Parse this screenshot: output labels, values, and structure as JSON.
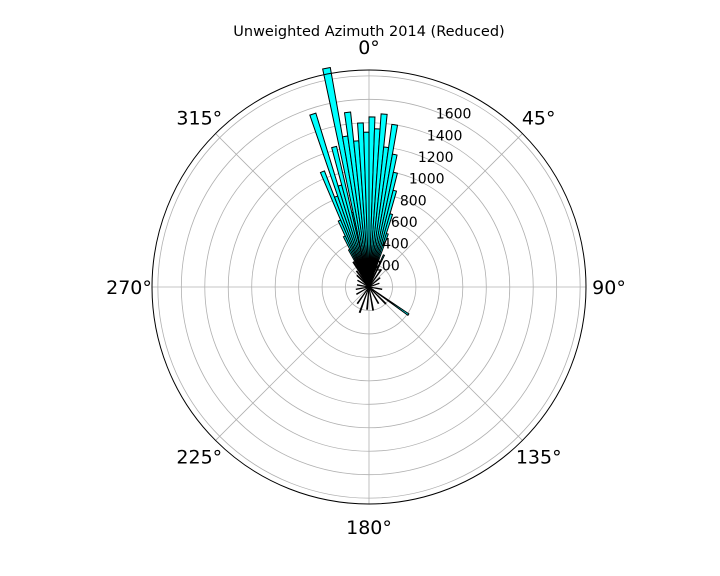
{
  "chart_data": {
    "type": "polar-bar",
    "title": "Unweighted Azimuth 2014 (Reduced)",
    "theta_zero": "top",
    "theta_direction": "clockwise",
    "grid": true,
    "bar_color": "#00ffff",
    "bar_edge_color": "#000000",
    "angular_tick_labels": [
      "0°",
      "45°",
      "90°",
      "135°",
      "180°",
      "225°",
      "270°",
      "315°"
    ],
    "radial_tick_labels": [
      "200",
      "400",
      "600",
      "800",
      "1000",
      "1200",
      "1400",
      "1600"
    ],
    "rlim": [
      0,
      1850
    ],
    "bin_width_deg": 2,
    "bars": [
      {
        "theta": -22,
        "r": 1060
      },
      {
        "theta": -20,
        "r": 820
      },
      {
        "theta": -18,
        "r": 1550
      },
      {
        "theta": -16,
        "r": 900
      },
      {
        "theta": -14,
        "r": 1230
      },
      {
        "theta": -12,
        "r": 650
      },
      {
        "theta": -11,
        "r": 1900
      },
      {
        "theta": -9,
        "r": 1300
      },
      {
        "theta": -7,
        "r": 1500
      },
      {
        "theta": -5,
        "r": 1250
      },
      {
        "theta": -3,
        "r": 1400
      },
      {
        "theta": -1,
        "r": 1320
      },
      {
        "theta": 1,
        "r": 1450
      },
      {
        "theta": 3,
        "r": 1350
      },
      {
        "theta": 5,
        "r": 1480
      },
      {
        "theta": 7,
        "r": 1200
      },
      {
        "theta": 9,
        "r": 1400
      },
      {
        "theta": 11,
        "r": 1150
      },
      {
        "theta": 13,
        "r": 1000
      },
      {
        "theta": 15,
        "r": 850
      },
      {
        "theta": 17,
        "r": 650
      },
      {
        "theta": 19,
        "r": 480
      },
      {
        "theta": -24,
        "r": 620
      },
      {
        "theta": -26,
        "r": 480
      },
      {
        "theta": -28,
        "r": 360
      },
      {
        "theta": -32,
        "r": 250
      },
      {
        "theta": -38,
        "r": 170
      },
      {
        "theta": -46,
        "r": 140
      },
      {
        "theta": -60,
        "r": 110
      },
      {
        "theta": 25,
        "r": 300
      },
      {
        "theta": 35,
        "r": 180
      },
      {
        "theta": 50,
        "r": 120
      },
      {
        "theta": 70,
        "r": 90
      },
      {
        "theta": 100,
        "r": 110
      },
      {
        "theta": 123,
        "r": 40
      },
      {
        "theta": 125,
        "r": 410
      },
      {
        "theta": 135,
        "r": 200
      },
      {
        "theta": 150,
        "r": 160
      },
      {
        "theta": 170,
        "r": 200
      },
      {
        "theta": 185,
        "r": 190
      },
      {
        "theta": 200,
        "r": 230
      },
      {
        "theta": 215,
        "r": 170
      },
      {
        "theta": 240,
        "r": 120
      },
      {
        "theta": 260,
        "r": 110
      },
      {
        "theta": 280,
        "r": 100
      }
    ]
  }
}
